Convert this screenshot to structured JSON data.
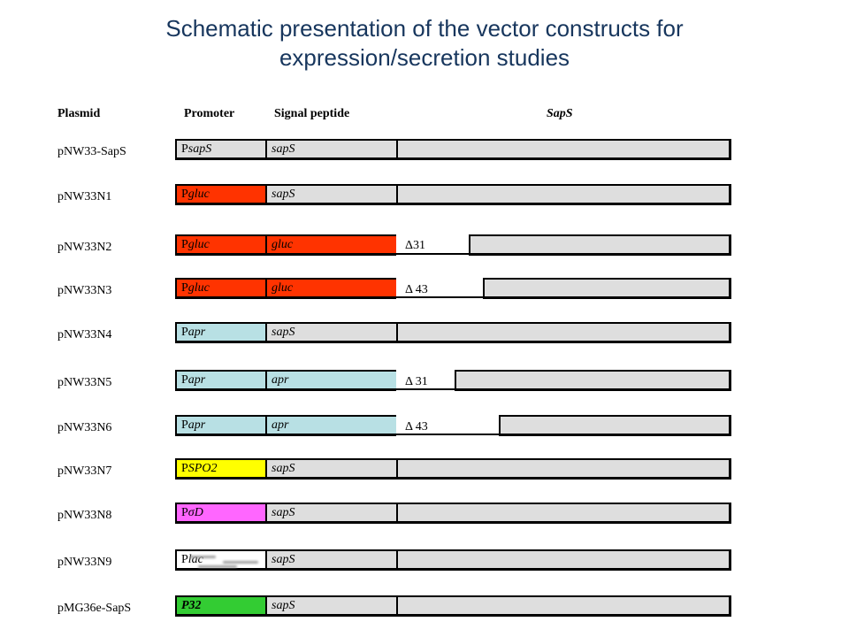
{
  "title_line1": "Schematic presentation of the vector constructs for",
  "title_line2": "expression/secretion studies",
  "headers": {
    "plasmid": "Plasmid",
    "promoter": "Promoter",
    "signal_peptide": "Signal peptide",
    "gene": "SapS"
  },
  "colors": {
    "gray": "#dedede",
    "red": "#ff3300",
    "lightblue": "#b8e0e4",
    "yellow": "#ffff00",
    "magenta": "#ff66ff",
    "white": "#ffffff",
    "green": "#33cc33"
  },
  "constructs": [
    {
      "name": "pNW33-SapS",
      "promoter": {
        "prefix": "P",
        "suffix": "sapS",
        "color": "gray"
      },
      "signal": {
        "text": "sapS",
        "color": "gray"
      }
    },
    {
      "name": "pNW33N1",
      "promoter": {
        "prefix": "P",
        "suffix": "gluc",
        "color": "red"
      },
      "signal": {
        "text": "sapS",
        "color": "gray"
      }
    },
    {
      "name": "pNW33N2",
      "promoter": {
        "prefix": "P",
        "suffix": "gluc",
        "color": "red"
      },
      "signal": {
        "text": "gluc",
        "color": "red"
      },
      "deletion": "Δ31"
    },
    {
      "name": "pNW33N3",
      "promoter": {
        "prefix": "P",
        "suffix": "gluc",
        "color": "red"
      },
      "signal": {
        "text": "gluc",
        "color": "red"
      },
      "deletion": "Δ 43"
    },
    {
      "name": "pNW33N4",
      "promoter": {
        "prefix": "P",
        "suffix": "apr",
        "color": "lightblue"
      },
      "signal": {
        "text": "sapS",
        "color": "gray"
      }
    },
    {
      "name": "pNW33N5",
      "promoter": {
        "prefix": "P",
        "suffix": "apr",
        "color": "lightblue"
      },
      "signal": {
        "text": "apr",
        "color": "lightblue"
      },
      "deletion": "Δ 31"
    },
    {
      "name": "pNW33N6",
      "promoter": {
        "prefix": "P",
        "suffix": "apr",
        "color": "lightblue"
      },
      "signal": {
        "text": "apr",
        "color": "lightblue"
      },
      "deletion": "Δ 43"
    },
    {
      "name": "pNW33N7",
      "promoter": {
        "prefix": "P",
        "suffix": "SPO2",
        "color": "yellow"
      },
      "signal": {
        "text": "sapS",
        "color": "gray"
      }
    },
    {
      "name": "pNW33N8",
      "promoter": {
        "prefix": "P",
        "suffix": "σD",
        "color": "magenta"
      },
      "signal": {
        "text": "sapS",
        "color": "gray"
      }
    },
    {
      "name": "pNW33N9",
      "promoter": {
        "prefix": "P",
        "suffix": "lac",
        "color": "white"
      },
      "signal": {
        "text": "sapS",
        "color": "gray"
      }
    },
    {
      "name": "pMG36e-SapS",
      "promoter": {
        "prefix": "",
        "suffix": "P32",
        "color": "green"
      },
      "signal": {
        "text": "sapS",
        "color": "gray"
      }
    }
  ]
}
